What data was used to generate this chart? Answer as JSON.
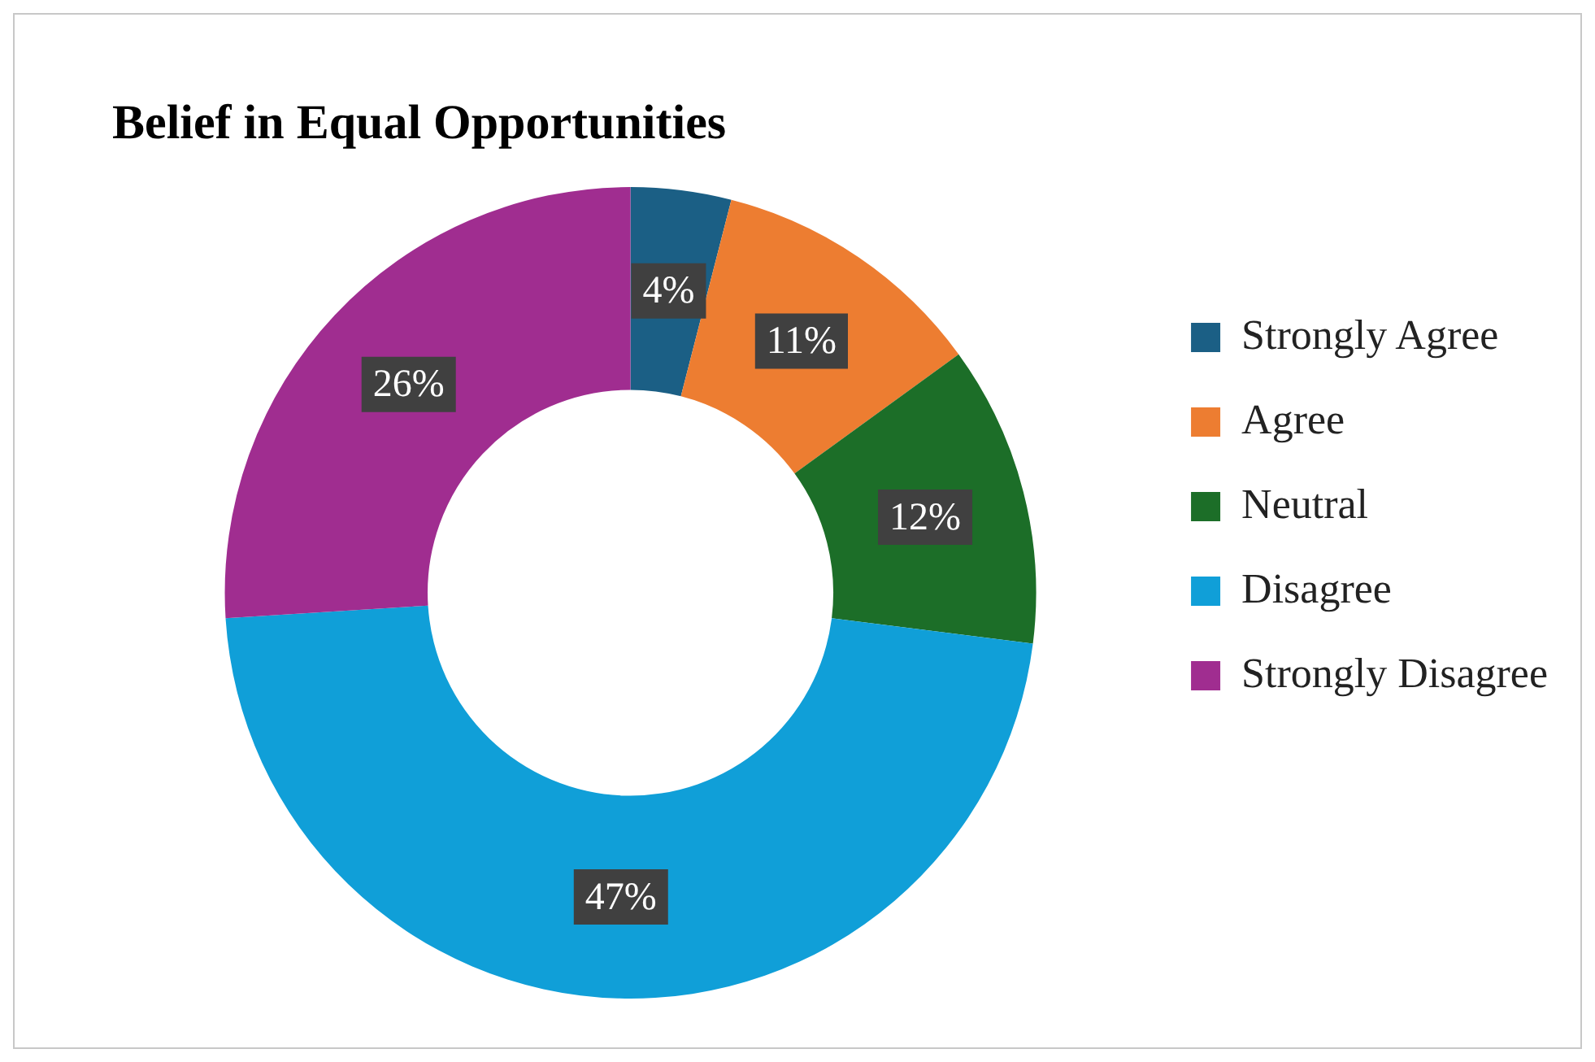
{
  "chart_data": {
    "type": "donut",
    "title": "Belief in Equal Opportunities",
    "categories": [
      "Strongly Agree",
      "Agree",
      "Neutral",
      "Disagree",
      "Strongly Disagree"
    ],
    "values": [
      4,
      11,
      12,
      47,
      26
    ],
    "colors": [
      "#1b5f85",
      "#ed7d31",
      "#1c6e28",
      "#109fd8",
      "#a02d90"
    ],
    "value_labels": [
      "4%",
      "11%",
      "12%",
      "47%",
      "26%"
    ],
    "legend": "right"
  }
}
